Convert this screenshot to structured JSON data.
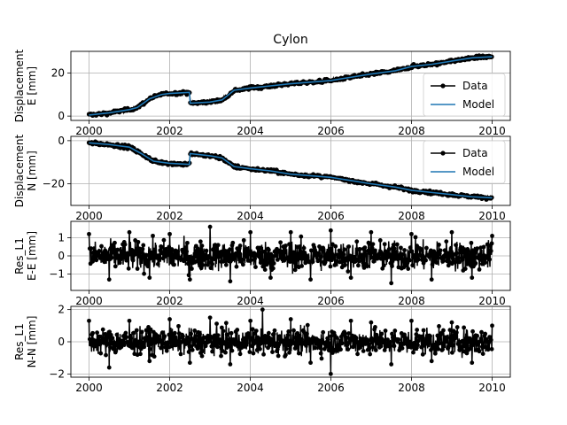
{
  "figure": {
    "title": "Cylon"
  },
  "colors": {
    "data": "#000000",
    "model": "#1f77b4",
    "grid": "#b0b0b0",
    "axes": "#000000"
  },
  "chart_data": [
    {
      "type": "line",
      "title": "Cylon",
      "xlabel": "",
      "ylabel_lines": [
        "Displacement",
        "E [mm]"
      ],
      "xlim": [
        1999.55,
        2010.45
      ],
      "ylim": [
        -2,
        30
      ],
      "xticks": [
        2000,
        2002,
        2004,
        2006,
        2008,
        2010
      ],
      "xtick_labels": [
        "2000",
        "2002",
        "2004",
        "2006",
        "2008",
        "2010"
      ],
      "yticks": [
        0,
        20
      ],
      "ytick_labels": [
        "0",
        "20"
      ],
      "grid": true,
      "legend": {
        "placement": "bottom-right",
        "entries": [
          "Data",
          "Model"
        ]
      },
      "series": [
        {
          "name": "Data",
          "style": "line-marker",
          "x": [
            2000.0,
            2000.5,
            2001.0,
            2001.2,
            2001.5,
            2001.8,
            2002.0,
            2002.49,
            2002.51,
            2003.0,
            2003.3,
            2003.6,
            2004.0,
            2004.5,
            2005.0,
            2006.0,
            2006.5,
            2007.0,
            2007.6,
            2008.0,
            2008.5,
            2009.0,
            2009.5,
            2010.0
          ],
          "y": [
            0.5,
            1.5,
            3.0,
            4.0,
            8.0,
            10.0,
            10.5,
            11.0,
            6.0,
            6.5,
            7.5,
            12.0,
            13.0,
            14.0,
            15.0,
            16.5,
            18.0,
            19.5,
            21.0,
            23.0,
            24.0,
            25.5,
            27.0,
            27.5
          ]
        },
        {
          "name": "Model",
          "style": "line",
          "x": [
            2000.0,
            2000.5,
            2001.0,
            2001.2,
            2001.5,
            2001.8,
            2002.0,
            2002.49,
            2002.51,
            2003.0,
            2003.3,
            2003.6,
            2004.0,
            2004.5,
            2005.0,
            2006.0,
            2006.5,
            2007.0,
            2007.6,
            2008.0,
            2008.5,
            2009.0,
            2009.5,
            2010.0
          ],
          "y": [
            0.5,
            1.5,
            3.0,
            4.0,
            8.0,
            10.0,
            10.5,
            11.0,
            6.0,
            6.5,
            7.5,
            12.0,
            13.0,
            14.0,
            15.0,
            16.5,
            18.0,
            19.5,
            21.0,
            23.0,
            24.0,
            25.5,
            27.0,
            27.5
          ]
        }
      ]
    },
    {
      "type": "line",
      "title": "",
      "xlabel": "",
      "ylabel_lines": [
        "Displacement",
        "N [mm]"
      ],
      "xlim": [
        1999.55,
        2010.45
      ],
      "ylim": [
        -30,
        2
      ],
      "xticks": [
        2000,
        2002,
        2004,
        2006,
        2008,
        2010
      ],
      "xtick_labels": [
        "2000",
        "2002",
        "2004",
        "2006",
        "2008",
        "2010"
      ],
      "yticks": [
        0,
        -20
      ],
      "ytick_labels": [
        "0",
        "−20"
      ],
      "grid": true,
      "legend": {
        "placement": "top-right",
        "entries": [
          "Data",
          "Model"
        ]
      },
      "series": [
        {
          "name": "Data",
          "style": "line-marker",
          "x": [
            2000.0,
            2000.5,
            2001.0,
            2001.3,
            2001.6,
            2002.0,
            2002.49,
            2002.51,
            2003.0,
            2003.3,
            2003.6,
            2004.0,
            2004.5,
            2005.0,
            2006.0,
            2006.5,
            2007.0,
            2007.6,
            2008.0,
            2008.5,
            2009.0,
            2009.5,
            2010.0
          ],
          "y": [
            -1.0,
            -1.8,
            -3.0,
            -6.0,
            -9.5,
            -10.5,
            -11.0,
            -6.0,
            -7.0,
            -8.0,
            -12.0,
            -13.0,
            -14.0,
            -15.5,
            -17.0,
            -18.5,
            -20.0,
            -21.5,
            -23.0,
            -24.0,
            -25.0,
            -26.0,
            -26.5
          ]
        },
        {
          "name": "Model",
          "style": "line",
          "x": [
            2000.0,
            2000.5,
            2001.0,
            2001.3,
            2001.6,
            2002.0,
            2002.49,
            2002.51,
            2003.0,
            2003.3,
            2003.6,
            2004.0,
            2004.5,
            2005.0,
            2006.0,
            2006.5,
            2007.0,
            2007.6,
            2008.0,
            2008.5,
            2009.0,
            2009.5,
            2010.0
          ],
          "y": [
            -1.0,
            -1.8,
            -3.0,
            -6.0,
            -9.5,
            -10.5,
            -11.0,
            -6.0,
            -7.0,
            -8.0,
            -12.0,
            -13.0,
            -14.0,
            -15.5,
            -17.0,
            -18.5,
            -20.0,
            -21.5,
            -23.0,
            -24.0,
            -25.0,
            -26.0,
            -26.5
          ]
        }
      ]
    },
    {
      "type": "line",
      "title": "",
      "xlabel": "",
      "ylabel_lines": [
        "Res_L1",
        "E-E [mm]"
      ],
      "xlim": [
        1999.55,
        2010.45
      ],
      "ylim": [
        -1.9,
        1.9
      ],
      "xticks": [
        2000,
        2002,
        2004,
        2006,
        2008,
        2010
      ],
      "xtick_labels": [
        "2000",
        "2002",
        "2004",
        "2006",
        "2008",
        "2010"
      ],
      "yticks": [
        1,
        0,
        -1
      ],
      "ytick_labels": [
        "1",
        "0",
        "−1"
      ],
      "grid": true,
      "series": [
        {
          "style": "line-marker",
          "x": [
            2000.0,
            2000.5,
            2001.0,
            2001.5,
            2002.0,
            2002.5,
            2003.0,
            2003.5,
            2004.0,
            2004.5,
            2005.0,
            2005.5,
            2006.0,
            2006.5,
            2007.0,
            2007.5,
            2008.0,
            2008.5,
            2009.0,
            2009.5,
            2010.0
          ],
          "y": [
            1.2,
            -1.3,
            1.3,
            -1.2,
            1.2,
            -1.3,
            1.6,
            -1.4,
            1.3,
            -1.2,
            1.3,
            -1.3,
            1.4,
            -1.2,
            1.3,
            -1.5,
            1.2,
            -1.3,
            1.3,
            -1.2,
            1.1
          ],
          "envelope": 1.2,
          "n_points": 1100
        }
      ]
    },
    {
      "type": "line",
      "title": "",
      "xlabel": "",
      "ylabel_lines": [
        "Res_L1",
        "N-N [mm]"
      ],
      "xlim": [
        1999.55,
        2010.45
      ],
      "ylim": [
        -2.2,
        2.2
      ],
      "xticks": [
        2000,
        2002,
        2004,
        2006,
        2008,
        2010
      ],
      "xtick_labels": [
        "2000",
        "2002",
        "2004",
        "2006",
        "2008",
        "2010"
      ],
      "yticks": [
        2,
        0,
        -2
      ],
      "ytick_labels": [
        "2",
        "0",
        "−2"
      ],
      "grid": true,
      "series": [
        {
          "style": "line-marker",
          "x": [
            2000.0,
            2000.5,
            2001.0,
            2001.5,
            2002.0,
            2002.5,
            2003.0,
            2003.5,
            2004.0,
            2004.3,
            2005.0,
            2005.5,
            2006.0,
            2006.5,
            2007.0,
            2007.5,
            2008.0,
            2008.5,
            2009.0,
            2009.5,
            2010.0
          ],
          "y": [
            1.3,
            -1.6,
            1.3,
            -1.2,
            1.4,
            -1.3,
            1.5,
            -1.4,
            1.3,
            2.0,
            1.4,
            -1.3,
            -2.0,
            1.3,
            1.2,
            -1.4,
            1.3,
            -1.2,
            1.2,
            -1.3,
            1.0
          ],
          "envelope": 1.2,
          "n_points": 1100
        }
      ]
    }
  ]
}
